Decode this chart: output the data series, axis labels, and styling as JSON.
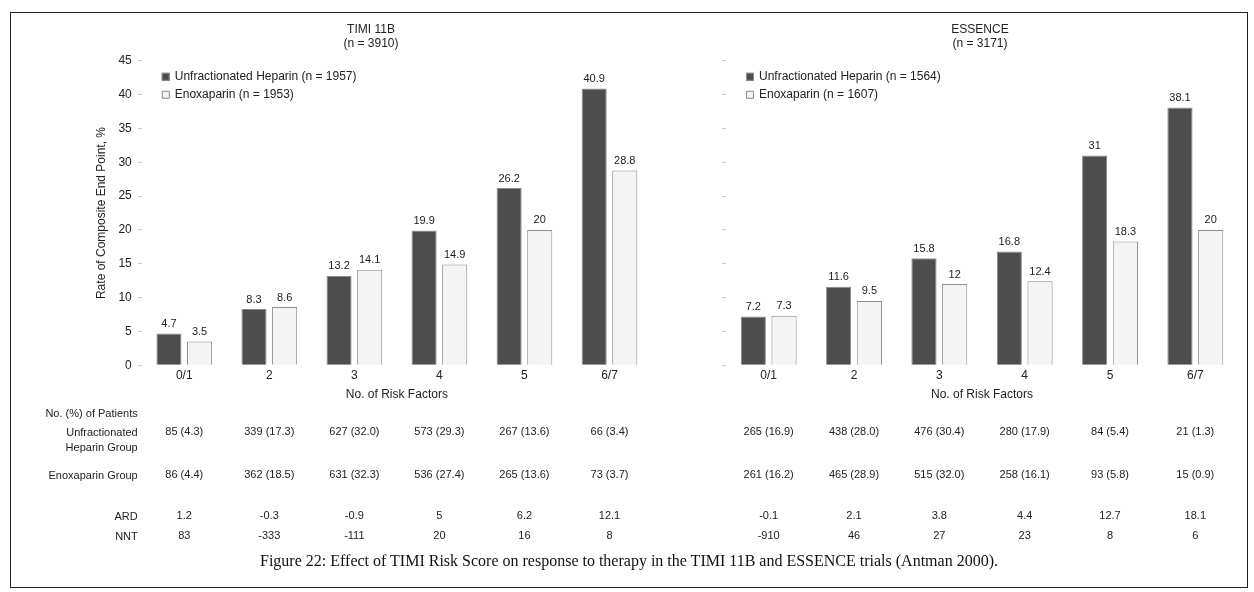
{
  "chart_data": [
    {
      "type": "bar",
      "title": "TIMI 11B",
      "subtitle": "(n = 3910)",
      "xlabel": "No. of Risk Factors",
      "ylabel": "Rate of Composite End Point, %",
      "categories": [
        "0/1",
        "2",
        "3",
        "4",
        "5",
        "6/7"
      ],
      "series": [
        {
          "name": "Unfractionated Heparin (n = 1957)",
          "color": "#4d4d4d",
          "values": [
            4.7,
            8.3,
            13.2,
            19.9,
            26.2,
            40.9
          ]
        },
        {
          "name": "Enoxaparin (n = 1953)",
          "color": "#f4f4f4",
          "values": [
            3.5,
            8.6,
            14.1,
            14.9,
            20,
            28.8
          ]
        }
      ],
      "ylim": [
        0,
        45
      ],
      "yticks": [
        0,
        5,
        10,
        15,
        20,
        25,
        30,
        35,
        40,
        45
      ],
      "grid": false,
      "legend": "top left",
      "data_labels": true,
      "annotations": [
        "No. (%) of Patients",
        "Unfractionated Heparin Group",
        "85 (4.3)",
        "339 (17.3)",
        "627 (32.0)",
        "573 (29.3)",
        "267 (13.6)",
        "66 (3.4)",
        "Enoxaparin Group",
        "86 (4.4)",
        "362 (18.5)",
        "631 (32.3)",
        "536 (27.4)",
        "265 (13.6)",
        "73 (3.7)",
        "ARD",
        "1.2",
        "-0.3",
        "-0.9",
        "5",
        "6.2",
        "12.1",
        "NNT",
        "83",
        "-333",
        "-111",
        "20",
        "16",
        "8"
      ]
    },
    {
      "type": "bar",
      "title": "ESSENCE",
      "subtitle": "(n = 3171)",
      "xlabel": "No. of Risk Factors",
      "categories": [
        "0/1",
        "2",
        "3",
        "4",
        "5",
        "6/7"
      ],
      "series": [
        {
          "name": "Unfractionated Heparin (n = 1564)",
          "color": "#4d4d4d",
          "values": [
            7.2,
            11.6,
            15.8,
            16.8,
            31,
            38.1
          ]
        },
        {
          "name": "Enoxaparin (n = 1607)",
          "color": "#f4f4f4",
          "values": [
            7.3,
            9.5,
            12,
            12.4,
            18.3,
            20
          ]
        }
      ],
      "ylim": [
        0,
        45
      ],
      "yticks": [
        0,
        5,
        10,
        15,
        20,
        25,
        30,
        35,
        40,
        45
      ],
      "tick_labels": "x",
      "grid": false,
      "legend": "top left",
      "data_labels": true,
      "annotations": [
        "265 (16.9)",
        "438 (28.0)",
        "476 (30.4)",
        "280 (17.9)",
        "84 (5.4)",
        "21 (1.3)",
        "261 (16.2)",
        "465 (28.9)",
        "515 (32.0)",
        "258 (16.1)",
        "93 (5.8)",
        "15 (0.9)",
        "-0.1",
        "2.1",
        "3.8",
        "4.4",
        "12.7",
        "18.1",
        "-910",
        "46",
        "27",
        "23",
        "8",
        "6",
        "Figure 22: Effect of TIMI Risk Score on response to therapy in the TIMI 11B and ESSENCE trials (Antman 2000)."
      ]
    }
  ]
}
